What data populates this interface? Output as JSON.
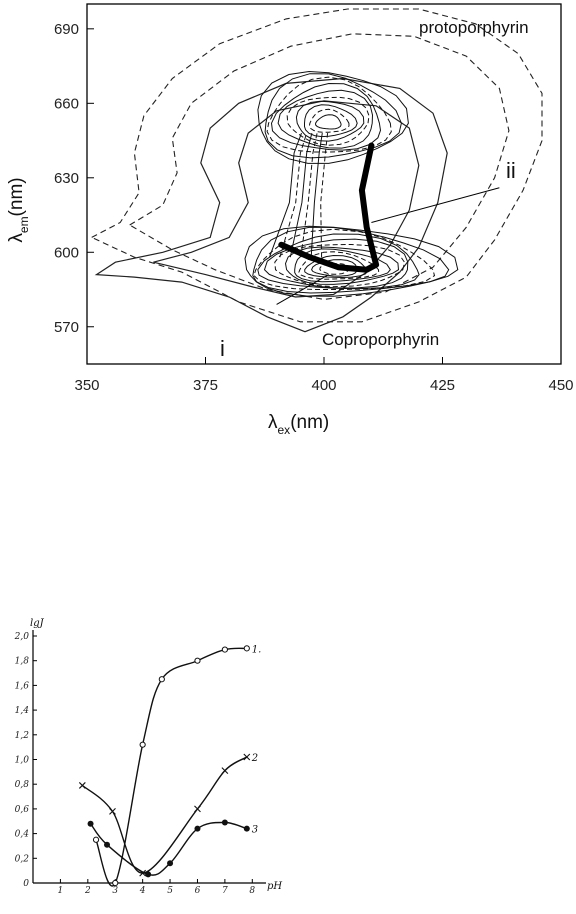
{
  "chart_data": [
    {
      "type": "contour",
      "xlim": [
        350,
        450
      ],
      "ylim": [
        555,
        700
      ],
      "x_ticks": [
        350,
        375,
        400,
        425,
        450
      ],
      "y_ticks": [
        570,
        600,
        630,
        660,
        690
      ],
      "xlabel": {
        "main": "λ",
        "sub": "ex",
        "rest": "(nm)"
      },
      "ylabel": {
        "main": "λ",
        "sub": "em",
        "rest": "(nm)"
      },
      "annotations": {
        "top": "protoporphyrin",
        "bottom": "Coproporphyrin",
        "i": "i",
        "ii": "ii"
      },
      "peaks": [
        {
          "name": "protoporphyrin",
          "x": 401,
          "y": 652
        },
        {
          "name": "Coproporphyrin",
          "x": 402,
          "y": 593
        }
      ],
      "ridge_path": [
        {
          "x": 391,
          "y": 603
        },
        {
          "x": 397,
          "y": 598
        },
        {
          "x": 403,
          "y": 594
        },
        {
          "x": 409,
          "y": 593
        },
        {
          "x": 411,
          "y": 595
        },
        {
          "x": 409,
          "y": 610
        },
        {
          "x": 408,
          "y": 625
        },
        {
          "x": 410,
          "y": 643
        }
      ],
      "leader_lines": [
        {
          "from": {
            "x": 390,
            "y": 579
          },
          "to": {
            "x": 401,
            "y": 591
          }
        },
        {
          "from": {
            "x": 437,
            "y": 626
          },
          "to": {
            "x": 410,
            "y": 612
          }
        }
      ],
      "contours": [
        {
          "style": "dashed",
          "pts": [
            [
              351,
              606
            ],
            [
              357,
              612
            ],
            [
              361,
              624
            ],
            [
              360,
              640
            ],
            [
              362,
              655
            ],
            [
              368,
              670
            ],
            [
              378,
              684
            ],
            [
              392,
              694
            ],
            [
              405,
              698
            ],
            [
              420,
              698
            ],
            [
              432,
              692
            ],
            [
              441,
              680
            ],
            [
              446,
              664
            ],
            [
              446,
              645
            ],
            [
              442,
              625
            ],
            [
              436,
              605
            ],
            [
              430,
              590
            ],
            [
              420,
              580
            ],
            [
              408,
              572
            ],
            [
              395,
              572
            ],
            [
              382,
              580
            ],
            [
              370,
              592
            ],
            [
              360,
              598
            ]
          ]
        },
        {
          "style": "dashed",
          "pts": [
            [
              359,
              611
            ],
            [
              366,
              619
            ],
            [
              369,
              632
            ],
            [
              368,
              646
            ],
            [
              372,
              660
            ],
            [
              381,
              673
            ],
            [
              393,
              683
            ],
            [
              406,
              688
            ],
            [
              419,
              687
            ],
            [
              430,
              679
            ],
            [
              437,
              666
            ],
            [
              439,
              649
            ],
            [
              436,
              630
            ],
            [
              430,
              610
            ],
            [
              423,
              594
            ],
            [
              413,
              584
            ],
            [
              400,
              581
            ],
            [
              388,
              585
            ],
            [
              377,
              593
            ],
            [
              368,
              601
            ]
          ]
        },
        {
          "style": "solid",
          "pts": [
            [
              352,
              591
            ],
            [
              356,
              596
            ],
            [
              366,
              600
            ],
            [
              376,
              606
            ],
            [
              378,
              620
            ],
            [
              374,
              636
            ],
            [
              376,
              650
            ],
            [
              382,
              660
            ],
            [
              392,
              668
            ],
            [
              404,
              670
            ],
            [
              416,
              666
            ],
            [
              423,
              656
            ],
            [
              426,
              640
            ],
            [
              424,
              620
            ],
            [
              420,
              602
            ],
            [
              416,
              592
            ],
            [
              410,
              582
            ],
            [
              404,
              574
            ],
            [
              396,
              568
            ],
            [
              388,
              574
            ],
            [
              380,
              582
            ],
            [
              370,
              588
            ],
            [
              360,
              590
            ]
          ]
        },
        {
          "style": "solid",
          "pts": [
            [
              364,
              596
            ],
            [
              372,
              600
            ],
            [
              380,
              606
            ],
            [
              384,
              620
            ],
            [
              382,
              636
            ],
            [
              384,
              648
            ],
            [
              390,
              657
            ],
            [
              400,
              661
            ],
            [
              411,
              659
            ],
            [
              418,
              650
            ],
            [
              420,
              635
            ],
            [
              418,
              617
            ],
            [
              414,
              603
            ],
            [
              409,
              592
            ],
            [
              402,
              583
            ],
            [
              394,
              582
            ],
            [
              385,
              586
            ],
            [
              375,
              591
            ]
          ]
        }
      ]
    },
    {
      "type": "line",
      "xlim": [
        0,
        8.5
      ],
      "ylim": [
        0,
        2.0
      ],
      "x_ticks": [
        "1",
        "2",
        "3",
        "4",
        "5",
        "6",
        "7",
        "8"
      ],
      "y_ticks": [
        "0",
        "0,2",
        "0,4",
        "0,6",
        "0,8",
        "1,0",
        "1,2",
        "1,4",
        "1,6",
        "1,8",
        "2,0"
      ],
      "xlabel": "pH",
      "ylabel": "lgJ",
      "series": [
        {
          "name": "1.",
          "marker": "open-circle",
          "x": [
            2.3,
            3.0,
            4.0,
            4.7,
            6.0,
            7.0,
            7.8
          ],
          "y": [
            0.35,
            0.0,
            1.12,
            1.65,
            1.8,
            1.89,
            1.9
          ]
        },
        {
          "name": "2",
          "marker": "cross",
          "x": [
            1.8,
            2.9,
            4.0,
            6.0,
            7.0,
            7.8
          ],
          "y": [
            0.79,
            0.58,
            0.08,
            0.6,
            0.91,
            1.02
          ]
        },
        {
          "name": "3",
          "marker": "filled-circle",
          "x": [
            2.1,
            2.7,
            4.2,
            5.0,
            6.0,
            7.0,
            7.8
          ],
          "y": [
            0.48,
            0.31,
            0.07,
            0.16,
            0.44,
            0.49,
            0.44
          ]
        }
      ]
    }
  ]
}
